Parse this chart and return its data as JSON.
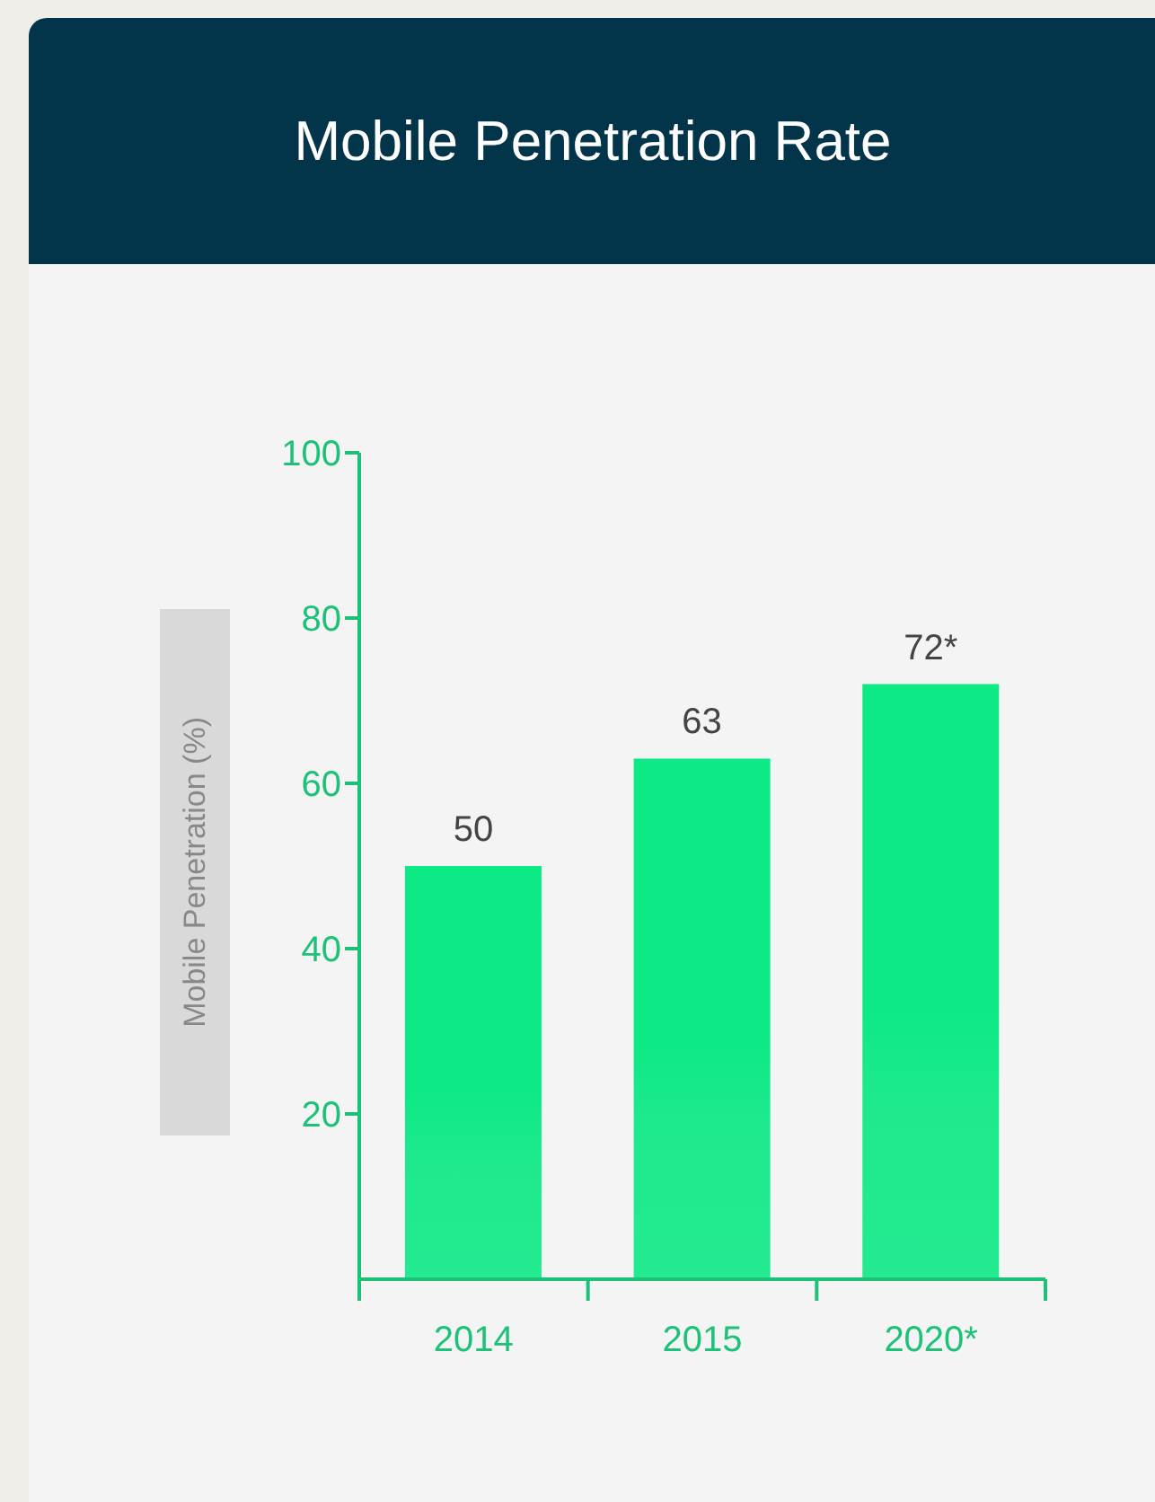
{
  "chart_data": {
    "type": "bar",
    "title": "Mobile Penetration Rate",
    "ylabel": "Mobile Penetration (%)",
    "categories": [
      "2014",
      "2015",
      "2020*"
    ],
    "values": [
      50,
      63,
      72
    ],
    "value_labels": [
      "50",
      "63",
      "72*"
    ],
    "color": "#0de985",
    "ylim": [
      0,
      100
    ],
    "yticks": [
      20,
      40,
      60,
      80,
      100
    ],
    "grid": false,
    "legend": false
  }
}
